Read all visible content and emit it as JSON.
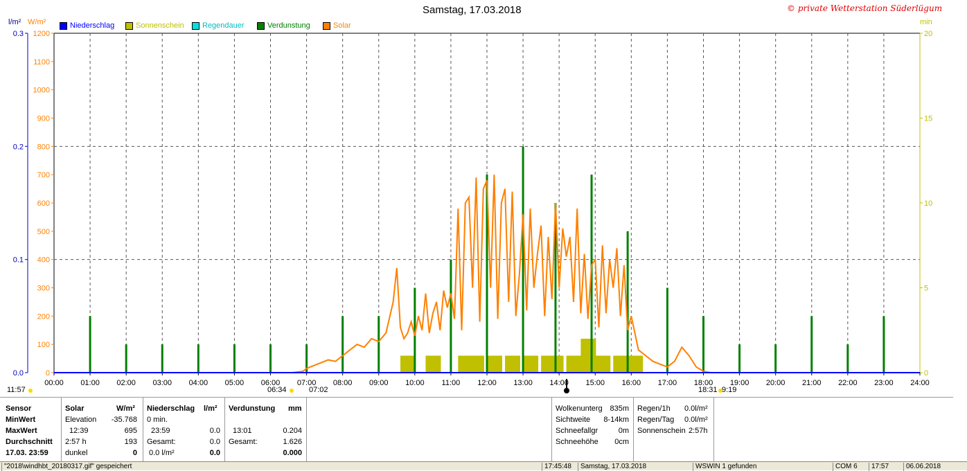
{
  "title": "Samstag, 17.03.2018",
  "copyright": "© private Wetterstation Süderlügum",
  "axis": {
    "left_unit_1": "l/m²",
    "left_unit_2": "W/m²",
    "right_unit": "min",
    "rain_ticks": [
      "0.3",
      "0.2",
      "0.1",
      "0.0"
    ],
    "solar_ticks": [
      "1200",
      "1100",
      "1000",
      "900",
      "800",
      "700",
      "600",
      "500",
      "400",
      "300",
      "200",
      "100",
      "0"
    ],
    "right_ticks": [
      "20",
      "15",
      "10",
      "5",
      "0"
    ],
    "x_ticks": [
      "00:00",
      "01:00",
      "02:00",
      "03:00",
      "04:00",
      "05:00",
      "06:00",
      "07:00",
      "08:00",
      "09:00",
      "10:00",
      "11:00",
      "12:00",
      "13:00",
      "14:00",
      "15:00",
      "16:00",
      "17:00",
      "18:00",
      "19:00",
      "20:00",
      "21:00",
      "22:00",
      "23:00",
      "24:00"
    ]
  },
  "legend": [
    {
      "label": "Niederschlag",
      "color": "#0000ff"
    },
    {
      "label": "Sonnenschein",
      "color": "#c0c000"
    },
    {
      "label": "Regendauer",
      "color": "#00e0e0"
    },
    {
      "label": "Verdunstung",
      "color": "#008000"
    },
    {
      "label": "Solar",
      "color": "#ff8000"
    }
  ],
  "markers": {
    "moonrise": "11:57",
    "sunrise": "06:34",
    "dawn": "07:02",
    "sunset": "18:31",
    "dusk_suffix": "9:19"
  },
  "chart_data": {
    "type": "line",
    "title": "Samstag, 17.03.2018",
    "x_range_hours": [
      0,
      24
    ],
    "y_left_solar_range": [
      0,
      1200
    ],
    "y_left_rain_range": [
      0,
      0.3
    ],
    "y_right_min_range": [
      0,
      20
    ],
    "grid": true,
    "legend_position": "top-left",
    "series": [
      {
        "name": "Solar",
        "color": "#ff8000",
        "unit": "W/m²",
        "x_hours": [
          6.6,
          6.9,
          7.0,
          7.2,
          7.4,
          7.6,
          7.8,
          8.0,
          8.2,
          8.4,
          8.6,
          8.8,
          9.0,
          9.2,
          9.4,
          9.5,
          9.6,
          9.7,
          9.8,
          9.9,
          10.0,
          10.1,
          10.2,
          10.3,
          10.4,
          10.5,
          10.6,
          10.7,
          10.8,
          10.9,
          11.0,
          11.1,
          11.2,
          11.3,
          11.4,
          11.5,
          11.6,
          11.7,
          11.8,
          11.9,
          12.0,
          12.1,
          12.2,
          12.3,
          12.4,
          12.5,
          12.6,
          12.7,
          12.8,
          12.9,
          13.0,
          13.1,
          13.2,
          13.3,
          13.4,
          13.5,
          13.6,
          13.7,
          13.8,
          13.9,
          14.0,
          14.1,
          14.2,
          14.3,
          14.4,
          14.5,
          14.6,
          14.7,
          14.8,
          14.9,
          15.0,
          15.1,
          15.2,
          15.3,
          15.4,
          15.5,
          15.6,
          15.7,
          15.8,
          15.9,
          16.0,
          16.2,
          16.4,
          16.6,
          16.8,
          17.0,
          17.2,
          17.4,
          17.6,
          17.8,
          18.0,
          18.2,
          18.4
        ],
        "y": [
          0,
          5,
          15,
          25,
          35,
          45,
          40,
          60,
          80,
          100,
          90,
          120,
          110,
          140,
          250,
          370,
          160,
          120,
          140,
          180,
          130,
          200,
          150,
          280,
          140,
          210,
          250,
          150,
          290,
          230,
          280,
          190,
          580,
          150,
          600,
          620,
          300,
          690,
          180,
          650,
          680,
          300,
          700,
          190,
          600,
          650,
          250,
          640,
          200,
          350,
          560,
          220,
          580,
          300,
          420,
          520,
          200,
          480,
          260,
          600,
          300,
          510,
          410,
          480,
          250,
          580,
          210,
          420,
          190,
          380,
          400,
          160,
          450,
          210,
          400,
          300,
          440,
          200,
          380,
          150,
          200,
          80,
          60,
          40,
          30,
          20,
          40,
          90,
          60,
          20,
          5,
          0,
          0
        ]
      },
      {
        "name": "Verdunstung",
        "color": "#008000",
        "unit": "l/m²",
        "x_hours": [
          1,
          2,
          3,
          4,
          5,
          6,
          7,
          8,
          9,
          10,
          11,
          12,
          13,
          13.9,
          14.9,
          15.9,
          17,
          18,
          19,
          20,
          21,
          22,
          23
        ],
        "y": [
          0.05,
          0.025,
          0.025,
          0.025,
          0.025,
          0.025,
          0.025,
          0.05,
          0.05,
          0.075,
          0.1,
          0.175,
          0.2,
          0.15,
          0.175,
          0.125,
          0.075,
          0.05,
          0.025,
          0.025,
          0.05,
          0.025,
          0.05
        ]
      },
      {
        "name": "Sonnenschein",
        "color": "#c0c000",
        "unit": "min",
        "x_hours": [
          9.6,
          10.3,
          11.2,
          11.5,
          12.0,
          12.5,
          13.0,
          13.5,
          13.7,
          14.2,
          14.6,
          15.0,
          15.5,
          15.9
        ],
        "y": [
          1,
          1,
          1,
          1,
          1,
          1,
          1,
          1,
          1,
          1,
          2,
          1,
          1,
          1
        ]
      },
      {
        "name": "Niederschlag",
        "color": "#0000ff",
        "unit": "l/m²",
        "x_hours": [
          0,
          24
        ],
        "y": [
          0,
          0
        ]
      }
    ]
  },
  "stats": {
    "col1": {
      "header": "Sensor",
      "rows": [
        "MinWert",
        "MaxWert",
        "Durchschnitt",
        "17.03.  23:59"
      ]
    },
    "col2": {
      "header": "Solar",
      "unit": "W/m²",
      "rows": [
        [
          "Elevation",
          "-35.768"
        ],
        [
          "12:39",
          "695"
        ],
        [
          "2:57 h",
          "193"
        ],
        [
          "dunkel",
          "0"
        ]
      ]
    },
    "col3": {
      "header": "Niederschlag",
      "unit": "l/m²",
      "rows": [
        [
          "0 min.",
          ""
        ],
        [
          "23:59",
          "0.0"
        ],
        [
          "Gesamt:",
          "0.0"
        ],
        [
          "0.0 l/m²",
          "0.0"
        ]
      ]
    },
    "col4": {
      "header": "Verdunstung",
      "unit": "mm",
      "rows": [
        [
          "",
          ""
        ],
        [
          "13:01",
          "0.204"
        ],
        [
          "Gesamt:",
          "1.626"
        ],
        [
          "",
          "0.000"
        ]
      ]
    },
    "col5": {
      "rows": [
        [
          "Wolkenunterg",
          "835m"
        ],
        [
          "Sichtweite",
          "8-14km"
        ],
        [
          "Schneefallgr",
          "0m"
        ],
        [
          "Schneehöhe",
          "0cm"
        ]
      ]
    },
    "col6": {
      "rows": [
        [
          "Regen/1h",
          "0.0l/m²"
        ],
        [
          "Regen/Tag",
          "0.0l/m²"
        ],
        [
          "Sonnenschein",
          "2:57h"
        ]
      ]
    }
  },
  "statusbar": [
    "\"2018\\windhbt_20180317.gif\" gespeichert",
    "17:45:48",
    "Samstag, 17.03.2018",
    "WSWIN 1 gefunden",
    "COM 6",
    "17:57",
    "06.06.2018"
  ]
}
